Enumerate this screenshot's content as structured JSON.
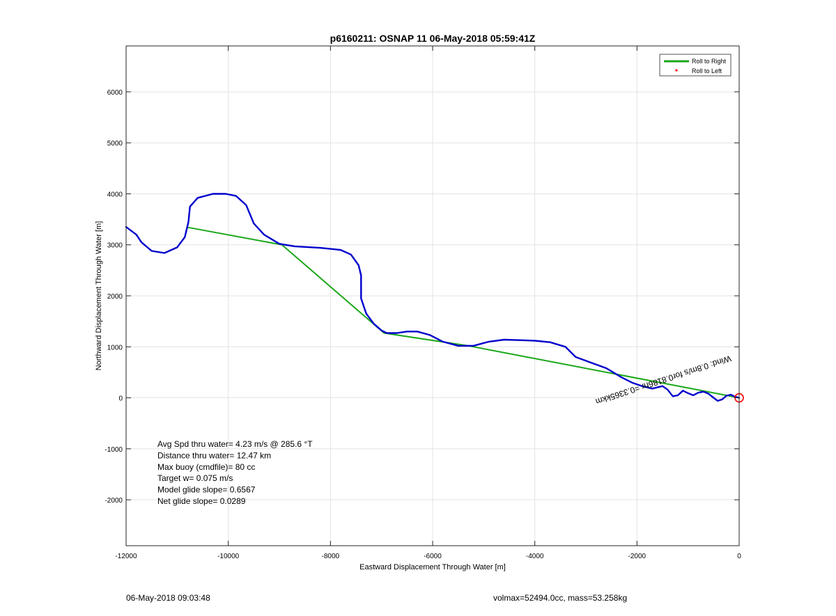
{
  "chart_data": {
    "type": "line",
    "title": "p6160211: OSNAP 11 06-May-2018 05:59:41Z",
    "xlabel": "Eastward Displacement Through Water [m]",
    "ylabel": "Northward Displacement Through Water [m]",
    "xlim": [
      -12000,
      0
    ],
    "ylim": [
      -2900,
      6900
    ],
    "xticks": [
      -12000,
      -10000,
      -8000,
      -6000,
      -4000,
      -2000,
      0
    ],
    "yticks": [
      -2000,
      -1000,
      0,
      1000,
      2000,
      3000,
      4000,
      5000,
      6000
    ],
    "xtick_labels": [
      "-12000",
      "-10000",
      "-8000",
      "-6000",
      "-4000",
      "-2000",
      "0"
    ],
    "ytick_labels": [
      "-2000",
      "-1000",
      "0",
      "1000",
      "2000",
      "3000",
      "4000",
      "5000",
      "6000"
    ],
    "grid": true,
    "legend_position": "top-right",
    "legend": [
      {
        "label": "Roll to Right",
        "color": "#1aa71a",
        "marker": "line"
      },
      {
        "label": "Roll to Left",
        "color": "#ff0000",
        "marker": "dot"
      }
    ],
    "series": [
      {
        "color": "#1aa71a",
        "points": [
          [
            -10780,
            3340
          ],
          [
            -8950,
            3000
          ],
          [
            -6950,
            1270
          ],
          [
            -5300,
            1020
          ],
          [
            0,
            0
          ]
        ]
      },
      {
        "color": "#0000cc",
        "points": [
          [
            -12000,
            3350
          ],
          [
            -11800,
            3200
          ],
          [
            -11700,
            3050
          ],
          [
            -11500,
            2880
          ],
          [
            -11250,
            2840
          ],
          [
            -11000,
            2950
          ],
          [
            -10850,
            3150
          ],
          [
            -10780,
            3450
          ],
          [
            -10750,
            3750
          ],
          [
            -10600,
            3920
          ],
          [
            -10300,
            4000
          ],
          [
            -10050,
            4000
          ],
          [
            -9850,
            3960
          ],
          [
            -9650,
            3780
          ],
          [
            -9500,
            3420
          ],
          [
            -9300,
            3200
          ],
          [
            -9000,
            3020
          ],
          [
            -8700,
            2970
          ],
          [
            -8200,
            2940
          ],
          [
            -7800,
            2900
          ],
          [
            -7600,
            2810
          ],
          [
            -7450,
            2600
          ],
          [
            -7400,
            2400
          ],
          [
            -7400,
            1950
          ],
          [
            -7300,
            1650
          ],
          [
            -7150,
            1450
          ],
          [
            -7000,
            1320
          ],
          [
            -6900,
            1270
          ],
          [
            -6700,
            1270
          ],
          [
            -6500,
            1300
          ],
          [
            -6300,
            1300
          ],
          [
            -6050,
            1230
          ],
          [
            -5800,
            1100
          ],
          [
            -5500,
            1020
          ],
          [
            -5200,
            1020
          ],
          [
            -4900,
            1100
          ],
          [
            -4600,
            1140
          ],
          [
            -4300,
            1130
          ],
          [
            -4000,
            1120
          ],
          [
            -3700,
            1090
          ],
          [
            -3400,
            1000
          ],
          [
            -3200,
            800
          ],
          [
            -2900,
            690
          ],
          [
            -2600,
            580
          ],
          [
            -2300,
            400
          ],
          [
            -2100,
            300
          ],
          [
            -1900,
            230
          ],
          [
            -1700,
            180
          ],
          [
            -1500,
            230
          ],
          [
            -1400,
            160
          ],
          [
            -1300,
            30
          ],
          [
            -1200,
            50
          ],
          [
            -1100,
            140
          ],
          [
            -1000,
            90
          ],
          [
            -900,
            50
          ],
          [
            -800,
            100
          ],
          [
            -700,
            120
          ],
          [
            -600,
            80
          ],
          [
            -500,
            0
          ],
          [
            -420,
            -60
          ],
          [
            -330,
            -30
          ],
          [
            -250,
            40
          ],
          [
            -160,
            60
          ],
          [
            -80,
            20
          ],
          [
            0,
            0
          ]
        ]
      }
    ],
    "annotation": {
      "text": "Wind: 0.8m/s for0.8186hr =0.3365kkm",
      "x": -1500,
      "y": 400,
      "rotation": -18
    },
    "text_box": [
      "Avg Spd thru water=  4.23 m/s @ 285.6 °T",
      "Distance thru water= 12.47 km",
      "Max buoy (cmdfile)= 80 cc",
      "Target w= 0.075 m/s",
      "Model glide slope= 0.6567",
      "Net glide slope= 0.0289"
    ],
    "end_marker": {
      "x": 0,
      "y": 0,
      "color": "#ff0000"
    }
  },
  "footer": {
    "left": "06-May-2018 09:03:48",
    "right": "volmax=52494.0cc, mass=53.258kg"
  }
}
